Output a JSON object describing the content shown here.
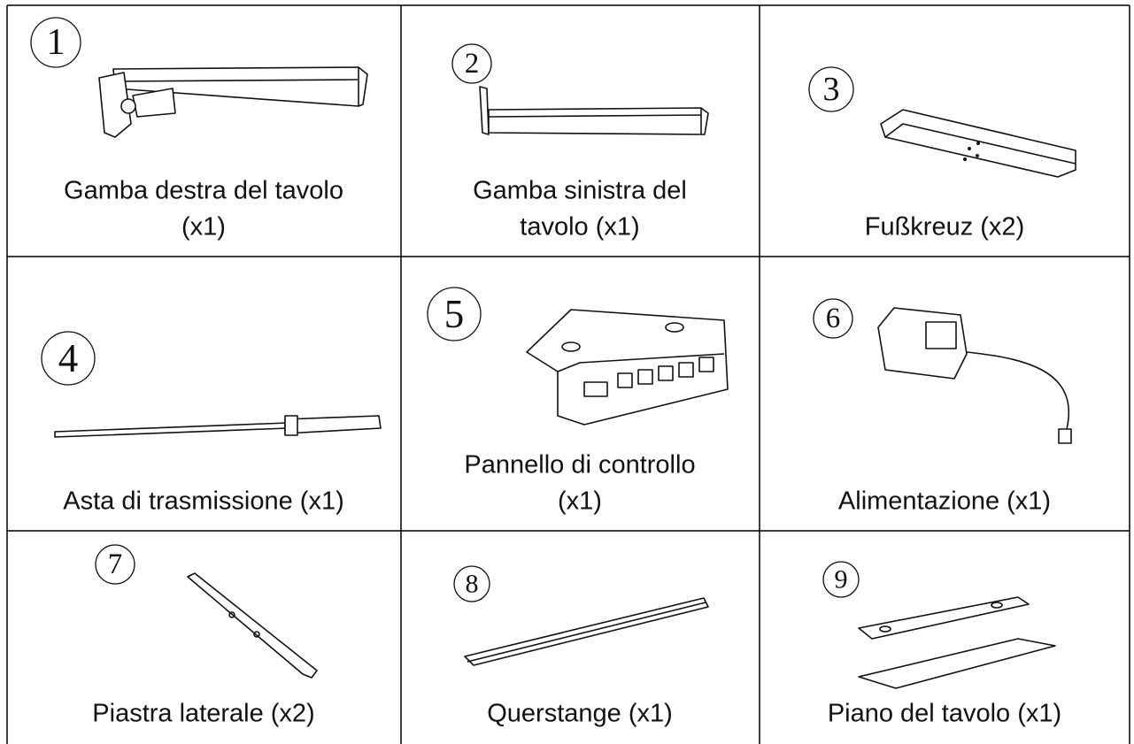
{
  "table": {
    "items": [
      {
        "number": "1",
        "label": [
          "Gamba destra del tavolo",
          "(x1)"
        ]
      },
      {
        "number": "2",
        "label": [
          "Gamba sinistra del",
          "tavolo (x1)"
        ]
      },
      {
        "number": "3",
        "label": [
          "Fußkreuz (x2)"
        ]
      },
      {
        "number": "4",
        "label": [
          "Asta di trasmissione (x1)"
        ]
      },
      {
        "number": "5",
        "label": [
          "Pannello di controllo",
          "(x1)"
        ]
      },
      {
        "number": "6",
        "label": [
          "Alimentazione (x1)"
        ]
      },
      {
        "number": "7",
        "label": [
          "Piastra laterale (x2)"
        ]
      },
      {
        "number": "8",
        "label": [
          "Querstange (x1)"
        ]
      },
      {
        "number": "9",
        "label": [
          "Piano del tavolo (x1)"
        ]
      }
    ]
  }
}
